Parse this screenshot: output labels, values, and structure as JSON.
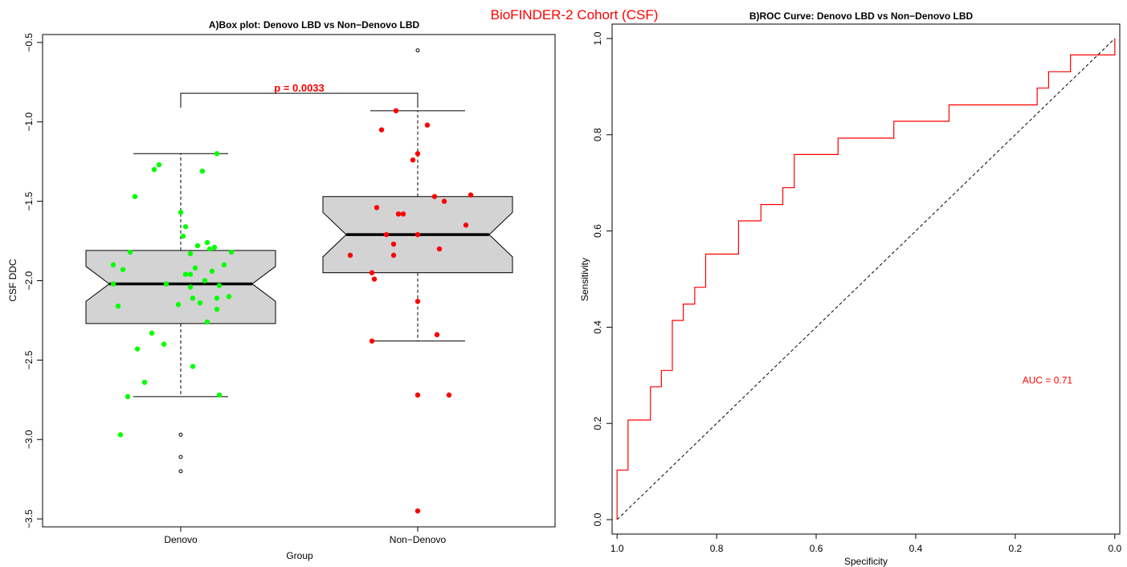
{
  "figure": {
    "suptitle": "BioFINDER-2 Cohort (CSF)"
  },
  "chart_data": [
    {
      "type": "box",
      "title": "A)Box plot: Denovo LBD vs Non−Denovo LBD",
      "xlabel": "Group",
      "ylabel": "CSF DDC",
      "ylim": [
        -3.55,
        -0.45
      ],
      "yticks": [
        -3.5,
        -3.0,
        -2.5,
        -2.0,
        -1.5,
        -1.0,
        -0.5
      ],
      "ytick_labels": [
        "−3.5",
        "−3.0",
        "−2.5",
        "−2.0",
        "−1.5",
        "−1.0",
        "−0.5"
      ],
      "categories": [
        "Denovo",
        "Non−Denovo"
      ],
      "notched": true,
      "box_color": "#d3d3d3",
      "boxes": [
        {
          "group": "Denovo",
          "q1": -2.27,
          "median": -2.02,
          "q3": -1.81,
          "notch_low": -2.13,
          "notch_high": -1.91,
          "whisker_low": -2.73,
          "whisker_high": -1.2,
          "outliers": [
            -2.97,
            -3.11,
            -3.2
          ]
        },
        {
          "group": "Non−Denovo",
          "q1": -1.95,
          "median": -1.71,
          "q3": -1.47,
          "notch_low": -1.85,
          "notch_high": -1.57,
          "whisker_low": -2.38,
          "whisker_high": -0.93,
          "outliers": [
            -0.55,
            -2.72,
            -3.45
          ]
        }
      ],
      "points": [
        {
          "group": "Denovo",
          "color": "#00ff00",
          "jitter": [
            0.15,
            -0.11,
            -0.09,
            0.09,
            -0.19,
            0.0,
            0.02,
            0.01,
            0.11,
            0.07,
            0.14,
            0.12,
            0.21,
            0.04,
            0.18,
            0.06,
            0.13,
            0.04,
            -0.28,
            -0.24,
            -0.21,
            -0.06,
            0.02,
            0.1,
            0.1,
            -0.28,
            -0.26,
            0.04,
            0.16,
            0.15,
            0.05,
            0.2,
            0.08,
            -0.01,
            0.11,
            0.15,
            -0.12,
            -0.07,
            -0.18,
            -0.15,
            0.05,
            0.16,
            -0.22,
            -0.25
          ],
          "y": [
            -1.2,
            -1.3,
            -1.27,
            -1.31,
            -1.47,
            -1.57,
            -1.66,
            -1.72,
            -1.76,
            -1.78,
            -1.79,
            -1.8,
            -1.82,
            -1.83,
            -1.9,
            -1.92,
            -1.94,
            -1.96,
            -1.9,
            -1.93,
            -1.82,
            -2.02,
            -1.96,
            -2.0,
            -2.0,
            -2.02,
            -2.16,
            -2.04,
            -2.03,
            -2.11,
            -2.11,
            -2.1,
            -2.14,
            -2.15,
            -2.26,
            -2.18,
            -2.33,
            -2.4,
            -2.43,
            -2.64,
            -2.54,
            -2.72,
            -2.73,
            -2.97
          ]
        },
        {
          "group": "Non−Denovo",
          "color": "#ff0000",
          "jitter": [
            -0.09,
            -0.15,
            0.04,
            -0.02,
            0.0,
            0.07,
            0.22,
            0.11,
            -0.17,
            -0.08,
            -0.06,
            -0.13,
            -0.1,
            0.2,
            0.0,
            0.09,
            -0.1,
            -0.28,
            -0.19,
            -0.18,
            0.0,
            0.08,
            -0.19,
            0.13,
            0.0,
            0.0
          ],
          "y": [
            -0.93,
            -1.05,
            -1.02,
            -1.24,
            -1.2,
            -1.47,
            -1.46,
            -1.5,
            -1.54,
            -1.58,
            -1.58,
            -1.71,
            -1.77,
            -1.65,
            -1.71,
            -1.8,
            -1.84,
            -1.84,
            -1.95,
            -1.99,
            -2.13,
            -2.34,
            -2.38,
            -2.72,
            -2.72,
            -3.45
          ]
        }
      ],
      "annotation": {
        "text": "p = 0.0033",
        "y": -0.82,
        "drop_to_y": -0.91
      }
    },
    {
      "type": "line",
      "title": "B)ROC Curve: Denovo LBD vs Non−Denovo LBD",
      "xlabel": "Specificity",
      "ylabel": "Sensitivity",
      "xlim": [
        1.01,
        -0.01
      ],
      "ylim": [
        -0.03,
        1.03
      ],
      "xticks": [
        1.0,
        0.8,
        0.6,
        0.4,
        0.2,
        0.0
      ],
      "xtick_labels": [
        "1.0",
        "0.8",
        "0.6",
        "0.4",
        "0.2",
        "0.0"
      ],
      "yticks": [
        0.0,
        0.2,
        0.4,
        0.6,
        0.8,
        1.0
      ],
      "ytick_labels": [
        "0.0",
        "0.2",
        "0.4",
        "0.6",
        "0.8",
        "1.0"
      ],
      "series": [
        {
          "color": "#ff0000",
          "x": [
            1.0,
            1.0,
            0.978,
            0.978,
            0.933,
            0.933,
            0.911,
            0.911,
            0.889,
            0.889,
            0.867,
            0.867,
            0.844,
            0.844,
            0.822,
            0.822,
            0.756,
            0.756,
            0.711,
            0.711,
            0.667,
            0.667,
            0.644,
            0.644,
            0.556,
            0.556,
            0.444,
            0.444,
            0.333,
            0.333,
            0.156,
            0.156,
            0.133,
            0.133,
            0.089,
            0.089,
            0.0,
            0.0
          ],
          "y": [
            0.0,
            0.103,
            0.103,
            0.207,
            0.207,
            0.276,
            0.276,
            0.31,
            0.31,
            0.414,
            0.414,
            0.448,
            0.448,
            0.483,
            0.483,
            0.552,
            0.552,
            0.621,
            0.621,
            0.655,
            0.655,
            0.69,
            0.69,
            0.759,
            0.759,
            0.793,
            0.793,
            0.828,
            0.828,
            0.862,
            0.862,
            0.897,
            0.897,
            0.931,
            0.931,
            0.966,
            0.966,
            1.0
          ]
        }
      ],
      "reference_line": {
        "x": [
          1.0,
          0.0
        ],
        "y": [
          0.0,
          1.0
        ],
        "style": "dashed"
      },
      "annotation": {
        "text": "AUC = 0.71",
        "x": 0.2,
        "y": 0.29
      }
    }
  ]
}
